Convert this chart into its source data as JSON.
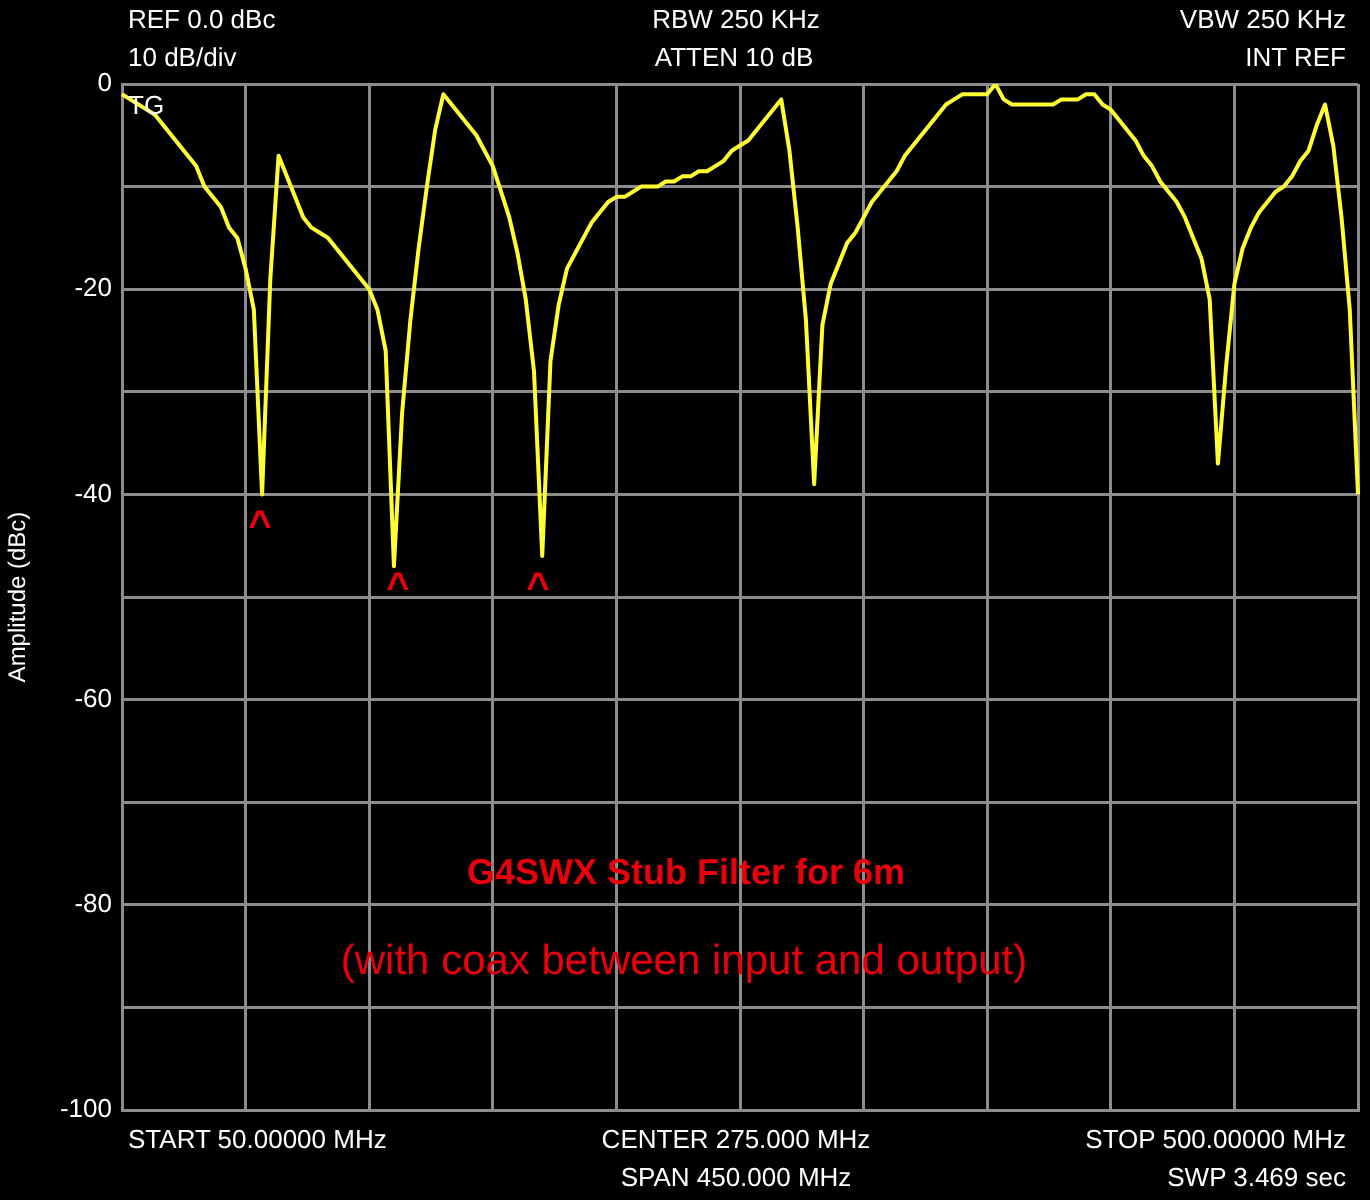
{
  "chart_data": {
    "type": "line",
    "title": "G4SWX Stub Filter for 6m",
    "subtitle": "(with coax between input and output)",
    "ylabel": "Amplitude (dBc)",
    "annotations": [
      "REF 0.0 dBc",
      "10 dB/div",
      "RBW 250 KHz",
      "ATTEN 10 dB",
      "VBW 250 KHz",
      "INT REF",
      "TG",
      "^",
      "^",
      "^",
      "START 50.00000 MHz",
      "CENTER 275.000 MHz",
      "STOP 500.00000 MHz",
      "SPAN 450.000 MHz",
      "SWP 3.469 sec"
    ],
    "categories": [
      null,
      null,
      null,
      null,
      null,
      null,
      null,
      null,
      null,
      null,
      null,
      null,
      null,
      null,
      null,
      null,
      null,
      null,
      null,
      null,
      null,
      null,
      null,
      null,
      null,
      null,
      null,
      null,
      null,
      null,
      null,
      null,
      null,
      null,
      null,
      null,
      null,
      null,
      null,
      null,
      null,
      null,
      null,
      null,
      null,
      null,
      null,
      null,
      null,
      null,
      null,
      null,
      null,
      null,
      null,
      null,
      null,
      null,
      null,
      null,
      null,
      null,
      null,
      null,
      null,
      null,
      null,
      null,
      null,
      null,
      null,
      null,
      null,
      null,
      null,
      null,
      null,
      null,
      null,
      null,
      null,
      null,
      null,
      null,
      null,
      null,
      null,
      null,
      null,
      null,
      null,
      null,
      null,
      null,
      null,
      null,
      null,
      null,
      null,
      null,
      null,
      null,
      null,
      null,
      null,
      null,
      null,
      null,
      null,
      null,
      null,
      null,
      null,
      null,
      null,
      null,
      null,
      null,
      null,
      null,
      null,
      null,
      null,
      null,
      null,
      null,
      null,
      null,
      null,
      null,
      null,
      null,
      null,
      null,
      null,
      null,
      null,
      null,
      null,
      null,
      null,
      null,
      null,
      null,
      null,
      null,
      null,
      null,
      null,
      null,
      null
    ],
    "series": [
      {
        "color": "#ffff33",
        "values": [
          -1,
          -1.5,
          -2,
          -2.5,
          -3,
          -4,
          -5,
          -6,
          -7,
          -8,
          -10,
          -11,
          -12,
          -14,
          -15,
          -18,
          -22,
          -40,
          -19,
          -7,
          -9,
          -11,
          -13,
          -14,
          -14.5,
          -15,
          -16,
          -17,
          -18,
          -19,
          -20,
          -22,
          -26,
          -47,
          -32,
          -23,
          -16,
          -10,
          -4.5,
          -1,
          -2,
          -3,
          -4,
          -5,
          -6.5,
          -8,
          -10.5,
          -13,
          -16.5,
          -21,
          -28,
          -46,
          -27,
          -21.5,
          -18,
          -16.5,
          -15,
          -13.5,
          -12.5,
          -11.5,
          -11,
          -11,
          -10.5,
          -10,
          -10,
          -10,
          -9.5,
          -9.5,
          -9,
          -9,
          -8.5,
          -8.5,
          -8,
          -7.5,
          -6.5,
          -6,
          -5.5,
          -4.5,
          -3.5,
          -2.5,
          -1.5,
          -6.5,
          -14,
          -23,
          -39,
          -23.5,
          -19.5,
          -17.5,
          -15.5,
          -14.5,
          -13,
          -11.5,
          -10.5,
          -9.5,
          -8.5,
          -7,
          -6,
          -5,
          -4,
          -3,
          -2,
          -1.5,
          -1,
          -1,
          -1,
          -1,
          0,
          -1.5,
          -2,
          -2,
          -2,
          -2,
          -2,
          -2,
          -1.5,
          -1.5,
          -1.5,
          -1,
          -1,
          -2,
          -2.5,
          -3.5,
          -4.5,
          -5.5,
          -7,
          -8,
          -9.5,
          -10.5,
          -11.5,
          -13,
          -15,
          -17,
          -21,
          -37,
          -27.5,
          -19.5,
          -16,
          -14,
          -12.5,
          -11.5,
          -10.5,
          -10,
          -9,
          -7.5,
          -6.5,
          -4,
          -2,
          -6,
          -13,
          -22,
          -40
        ]
      }
    ],
    "ylim": [
      -100,
      0
    ],
    "yticks": [
      0,
      {
        "value": -10,
        "label": null
      },
      -20,
      {
        "value": -30,
        "label": null
      },
      -40,
      {
        "value": -50,
        "label": null
      },
      -60,
      {
        "value": -70,
        "label": null
      },
      -80,
      {
        "value": -90,
        "label": null
      },
      -100
    ],
    "grid": true
  }
}
